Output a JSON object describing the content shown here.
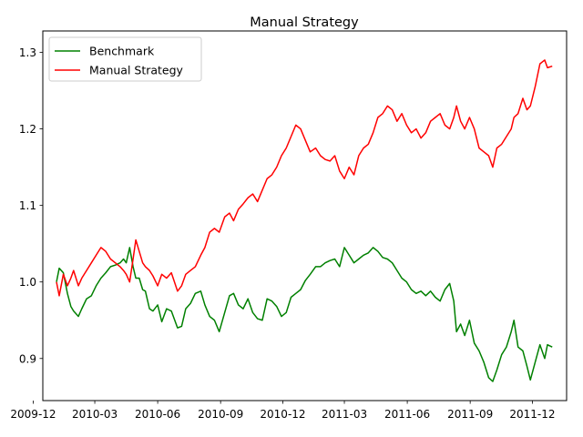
{
  "chart_data": {
    "type": "line",
    "title": "Manual Strategy",
    "xlabel": "",
    "ylabel": "",
    "xlim": [
      "2009-12-15",
      "2012-01-20"
    ],
    "ylim": [
      0.845,
      1.328
    ],
    "x_ticks": [
      "2009-12",
      "2010-03",
      "2010-06",
      "2010-09",
      "2010-12",
      "2011-03",
      "2011-06",
      "2011-09",
      "2011-12"
    ],
    "y_ticks": [
      "0.9",
      "1.0",
      "1.1",
      "1.2",
      "1.3"
    ],
    "grid": false,
    "legend_position": "top-left",
    "series": [
      {
        "name": "Benchmark",
        "color": "#008000",
        "points": [
          [
            "2010-01-04",
            1.0
          ],
          [
            "2010-01-08",
            1.018
          ],
          [
            "2010-01-14",
            1.012
          ],
          [
            "2010-01-20",
            0.985
          ],
          [
            "2010-01-25",
            0.968
          ],
          [
            "2010-01-29",
            0.962
          ],
          [
            "2010-02-05",
            0.955
          ],
          [
            "2010-02-10",
            0.965
          ],
          [
            "2010-02-17",
            0.978
          ],
          [
            "2010-02-24",
            0.982
          ],
          [
            "2010-03-03",
            0.995
          ],
          [
            "2010-03-10",
            1.005
          ],
          [
            "2010-03-17",
            1.012
          ],
          [
            "2010-03-24",
            1.02
          ],
          [
            "2010-03-31",
            1.022
          ],
          [
            "2010-04-07",
            1.025
          ],
          [
            "2010-04-12",
            1.03
          ],
          [
            "2010-04-16",
            1.025
          ],
          [
            "2010-04-21",
            1.045
          ],
          [
            "2010-04-26",
            1.02
          ],
          [
            "2010-04-30",
            1.005
          ],
          [
            "2010-05-05",
            1.005
          ],
          [
            "2010-05-10",
            0.99
          ],
          [
            "2010-05-14",
            0.988
          ],
          [
            "2010-05-20",
            0.965
          ],
          [
            "2010-05-25",
            0.962
          ],
          [
            "2010-06-01",
            0.97
          ],
          [
            "2010-06-07",
            0.948
          ],
          [
            "2010-06-14",
            0.965
          ],
          [
            "2010-06-21",
            0.962
          ],
          [
            "2010-06-30",
            0.94
          ],
          [
            "2010-07-06",
            0.942
          ],
          [
            "2010-07-12",
            0.965
          ],
          [
            "2010-07-19",
            0.972
          ],
          [
            "2010-07-26",
            0.985
          ],
          [
            "2010-08-03",
            0.988
          ],
          [
            "2010-08-09",
            0.97
          ],
          [
            "2010-08-16",
            0.955
          ],
          [
            "2010-08-23",
            0.95
          ],
          [
            "2010-08-30",
            0.935
          ],
          [
            "2010-09-07",
            0.96
          ],
          [
            "2010-09-14",
            0.982
          ],
          [
            "2010-09-20",
            0.985
          ],
          [
            "2010-09-27",
            0.97
          ],
          [
            "2010-10-04",
            0.965
          ],
          [
            "2010-10-11",
            0.978
          ],
          [
            "2010-10-18",
            0.96
          ],
          [
            "2010-10-25",
            0.952
          ],
          [
            "2010-11-01",
            0.95
          ],
          [
            "2010-11-08",
            0.978
          ],
          [
            "2010-11-15",
            0.975
          ],
          [
            "2010-11-22",
            0.968
          ],
          [
            "2010-11-29",
            0.955
          ],
          [
            "2010-12-06",
            0.96
          ],
          [
            "2010-12-13",
            0.98
          ],
          [
            "2010-12-20",
            0.985
          ],
          [
            "2010-12-27",
            0.99
          ],
          [
            "2011-01-03",
            1.002
          ],
          [
            "2011-01-10",
            1.01
          ],
          [
            "2011-01-18",
            1.02
          ],
          [
            "2011-01-25",
            1.02
          ],
          [
            "2011-02-01",
            1.025
          ],
          [
            "2011-02-08",
            1.028
          ],
          [
            "2011-02-15",
            1.03
          ],
          [
            "2011-02-22",
            1.02
          ],
          [
            "2011-03-01",
            1.045
          ],
          [
            "2011-03-08",
            1.035
          ],
          [
            "2011-03-15",
            1.025
          ],
          [
            "2011-03-22",
            1.03
          ],
          [
            "2011-03-29",
            1.035
          ],
          [
            "2011-04-05",
            1.038
          ],
          [
            "2011-04-12",
            1.045
          ],
          [
            "2011-04-19",
            1.04
          ],
          [
            "2011-04-26",
            1.032
          ],
          [
            "2011-05-03",
            1.03
          ],
          [
            "2011-05-10",
            1.025
          ],
          [
            "2011-05-17",
            1.015
          ],
          [
            "2011-05-24",
            1.005
          ],
          [
            "2011-05-31",
            1.0
          ],
          [
            "2011-06-07",
            0.99
          ],
          [
            "2011-06-14",
            0.985
          ],
          [
            "2011-06-21",
            0.988
          ],
          [
            "2011-06-28",
            0.982
          ],
          [
            "2011-07-05",
            0.988
          ],
          [
            "2011-07-12",
            0.98
          ],
          [
            "2011-07-19",
            0.975
          ],
          [
            "2011-07-26",
            0.99
          ],
          [
            "2011-08-02",
            0.998
          ],
          [
            "2011-08-08",
            0.975
          ],
          [
            "2011-08-12",
            0.935
          ],
          [
            "2011-08-18",
            0.945
          ],
          [
            "2011-08-24",
            0.93
          ],
          [
            "2011-08-31",
            0.95
          ],
          [
            "2011-09-07",
            0.92
          ],
          [
            "2011-09-14",
            0.91
          ],
          [
            "2011-09-21",
            0.895
          ],
          [
            "2011-09-28",
            0.875
          ],
          [
            "2011-10-04",
            0.87
          ],
          [
            "2011-10-10",
            0.885
          ],
          [
            "2011-10-17",
            0.905
          ],
          [
            "2011-10-24",
            0.915
          ],
          [
            "2011-10-31",
            0.935
          ],
          [
            "2011-11-04",
            0.95
          ],
          [
            "2011-11-10",
            0.915
          ],
          [
            "2011-11-17",
            0.91
          ],
          [
            "2011-11-23",
            0.89
          ],
          [
            "2011-11-28",
            0.872
          ],
          [
            "2011-12-05",
            0.895
          ],
          [
            "2011-12-12",
            0.918
          ],
          [
            "2011-12-19",
            0.9
          ],
          [
            "2011-12-23",
            0.918
          ],
          [
            "2011-12-30",
            0.915
          ]
        ]
      },
      {
        "name": "Manual Strategy",
        "color": "#ff0000",
        "points": [
          [
            "2010-01-04",
            1.0
          ],
          [
            "2010-01-08",
            0.982
          ],
          [
            "2010-01-14",
            1.01
          ],
          [
            "2010-01-20",
            0.995
          ],
          [
            "2010-01-25",
            1.005
          ],
          [
            "2010-01-29",
            1.015
          ],
          [
            "2010-02-05",
            0.995
          ],
          [
            "2010-02-10",
            1.005
          ],
          [
            "2010-02-17",
            1.015
          ],
          [
            "2010-02-24",
            1.025
          ],
          [
            "2010-03-03",
            1.035
          ],
          [
            "2010-03-10",
            1.045
          ],
          [
            "2010-03-17",
            1.04
          ],
          [
            "2010-03-24",
            1.03
          ],
          [
            "2010-03-31",
            1.025
          ],
          [
            "2010-04-07",
            1.02
          ],
          [
            "2010-04-12",
            1.015
          ],
          [
            "2010-04-16",
            1.01
          ],
          [
            "2010-04-21",
            1.0
          ],
          [
            "2010-04-26",
            1.03
          ],
          [
            "2010-04-30",
            1.055
          ],
          [
            "2010-05-05",
            1.04
          ],
          [
            "2010-05-10",
            1.025
          ],
          [
            "2010-05-14",
            1.02
          ],
          [
            "2010-05-20",
            1.015
          ],
          [
            "2010-05-25",
            1.008
          ],
          [
            "2010-06-01",
            0.995
          ],
          [
            "2010-06-07",
            1.01
          ],
          [
            "2010-06-14",
            1.005
          ],
          [
            "2010-06-21",
            1.012
          ],
          [
            "2010-06-30",
            0.988
          ],
          [
            "2010-07-06",
            0.995
          ],
          [
            "2010-07-12",
            1.01
          ],
          [
            "2010-07-19",
            1.015
          ],
          [
            "2010-07-26",
            1.02
          ],
          [
            "2010-08-03",
            1.035
          ],
          [
            "2010-08-09",
            1.045
          ],
          [
            "2010-08-16",
            1.065
          ],
          [
            "2010-08-23",
            1.07
          ],
          [
            "2010-08-30",
            1.065
          ],
          [
            "2010-09-07",
            1.085
          ],
          [
            "2010-09-14",
            1.09
          ],
          [
            "2010-09-20",
            1.08
          ],
          [
            "2010-09-27",
            1.095
          ],
          [
            "2010-10-04",
            1.102
          ],
          [
            "2010-10-11",
            1.11
          ],
          [
            "2010-10-18",
            1.115
          ],
          [
            "2010-10-25",
            1.105
          ],
          [
            "2010-11-01",
            1.12
          ],
          [
            "2010-11-08",
            1.135
          ],
          [
            "2010-11-15",
            1.14
          ],
          [
            "2010-11-22",
            1.15
          ],
          [
            "2010-11-29",
            1.165
          ],
          [
            "2010-12-06",
            1.175
          ],
          [
            "2010-12-13",
            1.19
          ],
          [
            "2010-12-20",
            1.205
          ],
          [
            "2010-12-27",
            1.2
          ],
          [
            "2011-01-03",
            1.185
          ],
          [
            "2011-01-10",
            1.17
          ],
          [
            "2011-01-18",
            1.175
          ],
          [
            "2011-01-25",
            1.165
          ],
          [
            "2011-02-01",
            1.16
          ],
          [
            "2011-02-08",
            1.158
          ],
          [
            "2011-02-15",
            1.165
          ],
          [
            "2011-02-22",
            1.145
          ],
          [
            "2011-03-01",
            1.135
          ],
          [
            "2011-03-08",
            1.15
          ],
          [
            "2011-03-15",
            1.14
          ],
          [
            "2011-03-22",
            1.165
          ],
          [
            "2011-03-29",
            1.175
          ],
          [
            "2011-04-05",
            1.18
          ],
          [
            "2011-04-12",
            1.195
          ],
          [
            "2011-04-19",
            1.215
          ],
          [
            "2011-04-26",
            1.22
          ],
          [
            "2011-05-03",
            1.23
          ],
          [
            "2011-05-10",
            1.225
          ],
          [
            "2011-05-17",
            1.21
          ],
          [
            "2011-05-24",
            1.22
          ],
          [
            "2011-05-31",
            1.205
          ],
          [
            "2011-06-07",
            1.195
          ],
          [
            "2011-06-14",
            1.2
          ],
          [
            "2011-06-21",
            1.188
          ],
          [
            "2011-06-28",
            1.195
          ],
          [
            "2011-07-05",
            1.21
          ],
          [
            "2011-07-12",
            1.215
          ],
          [
            "2011-07-19",
            1.22
          ],
          [
            "2011-07-26",
            1.205
          ],
          [
            "2011-08-02",
            1.2
          ],
          [
            "2011-08-08",
            1.215
          ],
          [
            "2011-08-12",
            1.23
          ],
          [
            "2011-08-18",
            1.21
          ],
          [
            "2011-08-24",
            1.2
          ],
          [
            "2011-08-31",
            1.215
          ],
          [
            "2011-09-07",
            1.2
          ],
          [
            "2011-09-14",
            1.175
          ],
          [
            "2011-09-21",
            1.17
          ],
          [
            "2011-09-28",
            1.165
          ],
          [
            "2011-10-04",
            1.15
          ],
          [
            "2011-10-10",
            1.175
          ],
          [
            "2011-10-17",
            1.18
          ],
          [
            "2011-10-24",
            1.19
          ],
          [
            "2011-10-31",
            1.2
          ],
          [
            "2011-11-04",
            1.215
          ],
          [
            "2011-11-10",
            1.22
          ],
          [
            "2011-11-17",
            1.24
          ],
          [
            "2011-11-23",
            1.225
          ],
          [
            "2011-11-28",
            1.23
          ],
          [
            "2011-12-05",
            1.255
          ],
          [
            "2011-12-12",
            1.285
          ],
          [
            "2011-12-19",
            1.29
          ],
          [
            "2011-12-23",
            1.28
          ],
          [
            "2011-12-30",
            1.282
          ]
        ]
      }
    ]
  }
}
